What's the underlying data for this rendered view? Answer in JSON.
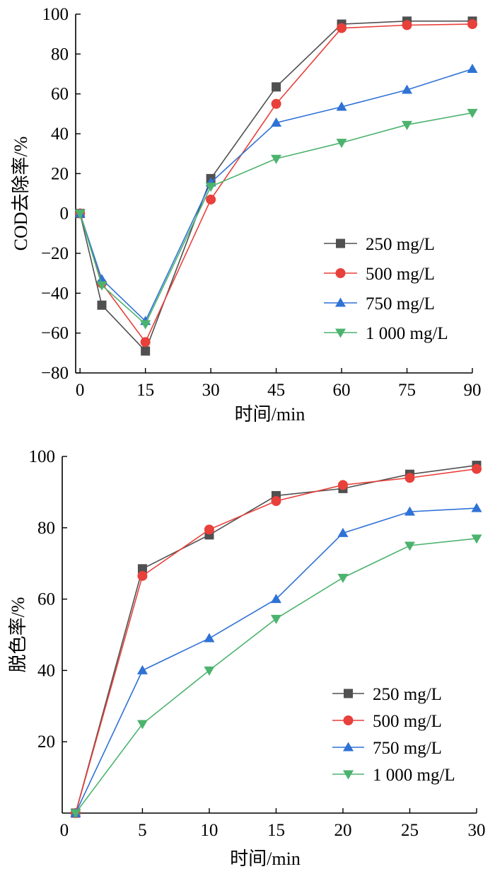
{
  "chart_data": [
    {
      "type": "line",
      "ylabel": "COD去除率/%",
      "xlabel": "时间/min",
      "x": [
        0,
        5,
        15,
        30,
        45,
        60,
        75,
        90
      ],
      "xticks": [
        0,
        15,
        30,
        45,
        60,
        75,
        90
      ],
      "yticks": [
        -80,
        -60,
        -40,
        -20,
        0,
        20,
        40,
        60,
        80,
        100
      ],
      "xlim": [
        -1,
        90
      ],
      "ylim": [
        -80,
        100
      ],
      "legend_position": "bottom-right",
      "series": [
        {
          "name": "250 mg/L",
          "color": "#505050",
          "marker": "square",
          "values": [
            0,
            -46,
            -69,
            17.5,
            63.5,
            95,
            96.5,
            96.5
          ]
        },
        {
          "name": "500 mg/L",
          "color": "#e8403a",
          "marker": "circle",
          "values": [
            0,
            -35,
            -64.5,
            7,
            55,
            93,
            94.5,
            95
          ]
        },
        {
          "name": "750 mg/L",
          "color": "#2f72d6",
          "marker": "triangle-up",
          "values": [
            0,
            -33,
            -54,
            15.5,
            45.5,
            53.5,
            62,
            72.5
          ]
        },
        {
          "name": "1 000 mg/L",
          "color": "#4cb36e",
          "marker": "triangle-down",
          "values": [
            0,
            -36,
            -55.5,
            13.5,
            27.5,
            35.5,
            44.5,
            50.5
          ]
        }
      ]
    },
    {
      "type": "line",
      "ylabel": "脱色率/%",
      "xlabel": "时间/min",
      "x": [
        0,
        5,
        10,
        15,
        20,
        25,
        30
      ],
      "xticks": [
        0,
        5,
        10,
        15,
        20,
        25,
        30
      ],
      "yticks": [
        20,
        40,
        60,
        80,
        100
      ],
      "xlim": [
        -1,
        30
      ],
      "ylim": [
        0,
        100
      ],
      "legend_position": "bottom-right",
      "series": [
        {
          "name": "250 mg/L",
          "color": "#505050",
          "marker": "square",
          "values": [
            0,
            68.5,
            78,
            89,
            91,
            95,
            97.5
          ]
        },
        {
          "name": "500 mg/L",
          "color": "#e8403a",
          "marker": "circle",
          "values": [
            0,
            66.5,
            79.5,
            87.5,
            92,
            94,
            96.5
          ]
        },
        {
          "name": "750 mg/L",
          "color": "#2f72d6",
          "marker": "triangle-up",
          "values": [
            0,
            40,
            49,
            60,
            78.5,
            84.5,
            85.5
          ]
        },
        {
          "name": "1 000 mg/L",
          "color": "#4cb36e",
          "marker": "triangle-down",
          "values": [
            0,
            25,
            40,
            54.5,
            66,
            75,
            77
          ]
        }
      ]
    }
  ]
}
